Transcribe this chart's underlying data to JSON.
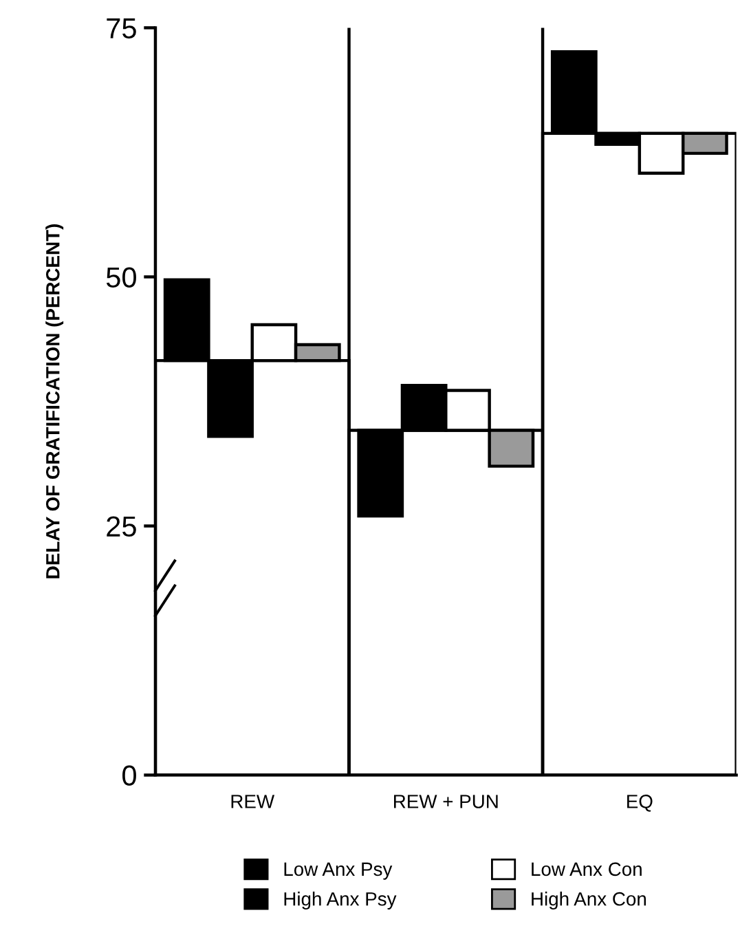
{
  "chart_data": {
    "type": "bar",
    "ylabel": "DELAY OF GRATIFICATION (PERCENT)",
    "categories": [
      "REW",
      "REW + PUN",
      "EQ"
    ],
    "series": [
      {
        "color": "#ffffff",
        "values": [
          41.6,
          34.6,
          64.4
        ]
      },
      {
        "name": "Low Anx Psy",
        "color": "#000000",
        "values": [
          8.1,
          -8.6,
          8.2
        ],
        "base": [
          41.6,
          34.6,
          64.4
        ]
      },
      {
        "name": "High Anx Psy",
        "color": "#000000",
        "values": [
          -7.6,
          4.5,
          -1.1
        ],
        "base": [
          41.6,
          34.6,
          64.4
        ]
      },
      {
        "name": "Low Anx Con",
        "color": "#ffffff",
        "values": [
          3.6,
          4.0,
          -4.0
        ],
        "base": [
          41.6,
          34.6,
          64.4
        ]
      },
      {
        "name": "High Anx Con",
        "color": "#9a9a9a",
        "values": [
          1.6,
          -3.6,
          -2.0
        ],
        "base": [
          41.6,
          34.6,
          64.4
        ]
      }
    ],
    "ylim": [
      0,
      75
    ],
    "yticks": [
      0,
      25,
      50,
      75
    ],
    "grid": false,
    "legend": "bottom"
  }
}
